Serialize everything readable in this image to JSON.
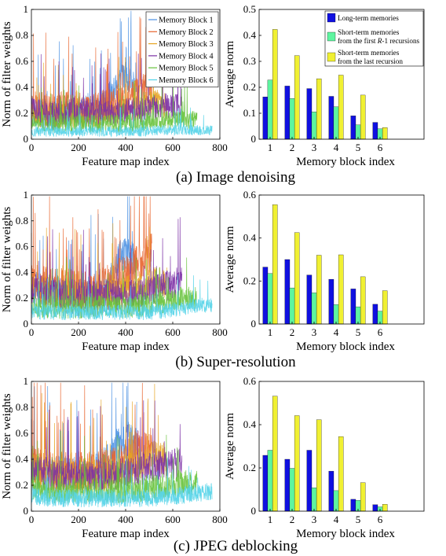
{
  "captions": [
    "(a) Image denoising",
    "(b) Super-resolution",
    "(c) JPEG deblocking"
  ],
  "colors": {
    "lines": [
      "#4a90e2",
      "#e8642c",
      "#e6a422",
      "#7b2fa5",
      "#66c23a",
      "#52d3e8"
    ],
    "long_term": "#1010e0",
    "short_first": "#5ef5a0",
    "short_last": "#f0f032"
  },
  "chart_data": [
    {
      "type": "line",
      "panel": "a-left",
      "xlabel": "Feature map index",
      "ylabel": "Norm of filter weights",
      "xlim": [
        0,
        800
      ],
      "ylim": [
        0,
        1
      ],
      "xticks": [
        "0",
        "200",
        "400",
        "600",
        "800"
      ],
      "yticks": [
        "0",
        "0.2",
        "0.4",
        "0.6",
        "0.8",
        "1"
      ],
      "legend": "top-right",
      "series": [
        {
          "name": "Memory Block 1",
          "length": 448,
          "levels": [
            0.22,
            0.2,
            0.18,
            0.2,
            0.22,
            0.2,
            0.24,
            0.2,
            0.3,
            0.45,
            0.48,
            0.4
          ],
          "spread": 0.12
        },
        {
          "name": "Memory Block 2",
          "length": 512,
          "levels": [
            0.25,
            0.24,
            0.22,
            0.24,
            0.24,
            0.22,
            0.24,
            0.26,
            0.3,
            0.32,
            0.38,
            0.4
          ],
          "spread": 0.13
        },
        {
          "name": "Memory Block 3",
          "length": 576,
          "levels": [
            0.2,
            0.18,
            0.18,
            0.19,
            0.18,
            0.17,
            0.18,
            0.2,
            0.22,
            0.26,
            0.3,
            0.25
          ],
          "spread": 0.1
        },
        {
          "name": "Memory Block 4",
          "length": 640,
          "levels": [
            0.22,
            0.2,
            0.2,
            0.22,
            0.22,
            0.2,
            0.2,
            0.22,
            0.22,
            0.24,
            0.26,
            0.25
          ],
          "spread": 0.1
        },
        {
          "name": "Memory Block 5",
          "length": 704,
          "levels": [
            0.12,
            0.12,
            0.12,
            0.12,
            0.12,
            0.12,
            0.12,
            0.13,
            0.14,
            0.15,
            0.15,
            0.15
          ],
          "spread": 0.07
        },
        {
          "name": "Memory Block 6",
          "length": 768,
          "levels": [
            0.06,
            0.06,
            0.06,
            0.06,
            0.06,
            0.06,
            0.06,
            0.06,
            0.07,
            0.07,
            0.07,
            0.07
          ],
          "spread": 0.04
        }
      ]
    },
    {
      "type": "bar",
      "panel": "a-right",
      "xlabel": "Memory block index",
      "ylabel": "Average norm",
      "categories": [
        "1",
        "2",
        "3",
        "4",
        "5",
        "6"
      ],
      "xlim": [
        0.5,
        8
      ],
      "ylim": [
        0,
        0.5
      ],
      "yticks": [
        "0",
        "0.1",
        "0.2",
        "0.3",
        "0.4",
        "0.5"
      ],
      "legend": "top-right",
      "series": [
        {
          "name": "Long-term memories",
          "values": [
            0.163,
            0.205,
            0.195,
            0.165,
            0.09,
            0.065
          ]
        },
        {
          "name": "Short-term memories from the first R-1 recursions",
          "values": [
            0.228,
            0.157,
            0.105,
            0.125,
            0.055,
            0.04
          ]
        },
        {
          "name": "Short-term memories from the last recursion",
          "values": [
            0.423,
            0.322,
            0.233,
            0.247,
            0.17,
            0.045
          ]
        }
      ]
    },
    {
      "type": "line",
      "panel": "b-left",
      "xlabel": "Feature map index",
      "ylabel": "Norm of filter weights",
      "xlim": [
        0,
        800
      ],
      "ylim": [
        0,
        1
      ],
      "xticks": [
        "0",
        "200",
        "400",
        "600",
        "800"
      ],
      "yticks": [
        "0",
        "0.2",
        "0.4",
        "0.6",
        "0.8",
        "1"
      ],
      "series": [
        {
          "length": 448,
          "levels": [
            0.3,
            0.26,
            0.24,
            0.22,
            0.2,
            0.18,
            0.2,
            0.2,
            0.25,
            0.5,
            0.55,
            0.45
          ],
          "spread": 0.14
        },
        {
          "length": 512,
          "levels": [
            0.35,
            0.3,
            0.28,
            0.28,
            0.26,
            0.25,
            0.26,
            0.3,
            0.35,
            0.4,
            0.5,
            0.55
          ],
          "spread": 0.16
        },
        {
          "length": 576,
          "levels": [
            0.28,
            0.25,
            0.24,
            0.23,
            0.22,
            0.22,
            0.22,
            0.24,
            0.26,
            0.3,
            0.33,
            0.32
          ],
          "spread": 0.12
        },
        {
          "length": 640,
          "levels": [
            0.28,
            0.25,
            0.24,
            0.23,
            0.22,
            0.22,
            0.22,
            0.22,
            0.24,
            0.26,
            0.3,
            0.33
          ],
          "spread": 0.12
        },
        {
          "length": 704,
          "levels": [
            0.14,
            0.13,
            0.13,
            0.13,
            0.13,
            0.13,
            0.13,
            0.14,
            0.15,
            0.18,
            0.2,
            0.2
          ],
          "spread": 0.09
        },
        {
          "length": 768,
          "levels": [
            0.1,
            0.09,
            0.09,
            0.09,
            0.09,
            0.09,
            0.09,
            0.09,
            0.1,
            0.12,
            0.14,
            0.15
          ],
          "spread": 0.06
        }
      ]
    },
    {
      "type": "bar",
      "panel": "b-right",
      "xlabel": "Memory block index",
      "ylabel": "Average norm",
      "categories": [
        "1",
        "2",
        "3",
        "4",
        "5",
        "6"
      ],
      "xlim": [
        0.5,
        8
      ],
      "ylim": [
        0,
        0.6
      ],
      "yticks": [
        "0",
        "0.2",
        "0.4",
        "0.6"
      ],
      "series": [
        {
          "values": [
            0.265,
            0.3,
            0.228,
            0.208,
            0.163,
            0.092
          ]
        },
        {
          "values": [
            0.235,
            0.168,
            0.145,
            0.09,
            0.08,
            0.06
          ]
        },
        {
          "values": [
            0.555,
            0.425,
            0.32,
            0.322,
            0.22,
            0.155
          ]
        }
      ]
    },
    {
      "type": "line",
      "panel": "c-left",
      "xlabel": "Feature map index",
      "ylabel": "Norm of filter weights",
      "xlim": [
        0,
        800
      ],
      "ylim": [
        0,
        1
      ],
      "xticks": [
        "0",
        "200",
        "400",
        "600",
        "800"
      ],
      "yticks": [
        "0",
        "0.2",
        "0.4",
        "0.6",
        "0.8",
        "1"
      ],
      "series": [
        {
          "length": 448,
          "levels": [
            0.3,
            0.3,
            0.28,
            0.28,
            0.28,
            0.26,
            0.28,
            0.3,
            0.38,
            0.5,
            0.55,
            0.5
          ],
          "spread": 0.15
        },
        {
          "length": 512,
          "levels": [
            0.35,
            0.33,
            0.3,
            0.3,
            0.3,
            0.3,
            0.3,
            0.32,
            0.36,
            0.42,
            0.48,
            0.5
          ],
          "spread": 0.16
        },
        {
          "length": 576,
          "levels": [
            0.32,
            0.3,
            0.28,
            0.28,
            0.28,
            0.28,
            0.28,
            0.3,
            0.32,
            0.38,
            0.42,
            0.4
          ],
          "spread": 0.13
        },
        {
          "length": 640,
          "levels": [
            0.32,
            0.3,
            0.28,
            0.28,
            0.28,
            0.28,
            0.28,
            0.3,
            0.32,
            0.34,
            0.36,
            0.37
          ],
          "spread": 0.12
        },
        {
          "length": 704,
          "levels": [
            0.18,
            0.16,
            0.16,
            0.16,
            0.16,
            0.16,
            0.16,
            0.17,
            0.18,
            0.2,
            0.22,
            0.22
          ],
          "spread": 0.1
        },
        {
          "length": 768,
          "levels": [
            0.12,
            0.1,
            0.1,
            0.1,
            0.1,
            0.1,
            0.1,
            0.1,
            0.11,
            0.12,
            0.14,
            0.15
          ],
          "spread": 0.07
        }
      ]
    },
    {
      "type": "bar",
      "panel": "c-right",
      "xlabel": "Memory block index",
      "ylabel": "Average norm",
      "categories": [
        "1",
        "2",
        "3",
        "4",
        "5",
        "6"
      ],
      "xlim": [
        0.5,
        8
      ],
      "ylim": [
        0,
        0.6
      ],
      "yticks": [
        "0",
        "0.2",
        "0.4",
        "0.6"
      ],
      "series": [
        {
          "values": [
            0.258,
            0.24,
            0.282,
            0.185,
            0.055,
            0.03
          ]
        },
        {
          "values": [
            0.282,
            0.198,
            0.108,
            0.095,
            0.05,
            0.02
          ]
        },
        {
          "values": [
            0.532,
            0.442,
            0.423,
            0.345,
            0.132,
            0.032
          ]
        }
      ]
    }
  ]
}
